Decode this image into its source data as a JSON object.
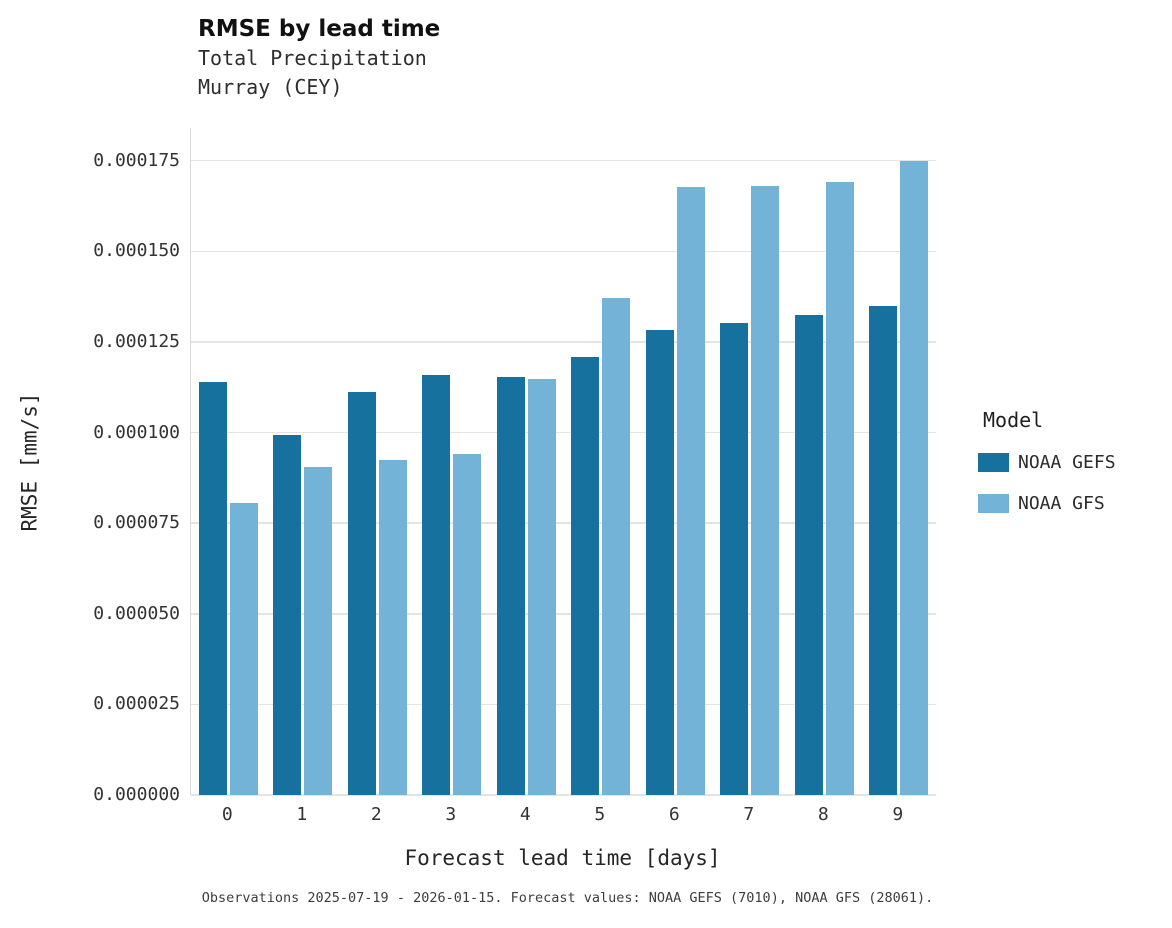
{
  "header": {
    "title": "RMSE by lead time",
    "subtitle_line1": "Total Precipitation",
    "subtitle_line2": "Murray (CEY)"
  },
  "chart_data": {
    "type": "bar",
    "title": "RMSE by lead time",
    "subtitle": "Total Precipitation / Murray (CEY)",
    "categories": [
      "0",
      "1",
      "2",
      "3",
      "4",
      "5",
      "6",
      "7",
      "8",
      "9"
    ],
    "series": [
      {
        "name": "NOAA GEFS",
        "color": "#17719f",
        "values": [
          0.000114,
          9.93e-05,
          0.0001113,
          0.000116,
          0.0001152,
          0.0001207,
          0.0001282,
          0.0001303,
          0.0001325,
          0.000135
        ]
      },
      {
        "name": "NOAA GFS",
        "color": "#73b3d8",
        "values": [
          8.05e-05,
          9.05e-05,
          9.23e-05,
          9.4e-05,
          0.0001148,
          0.0001372,
          0.0001678,
          0.000168,
          0.000169,
          0.0001748
        ]
      }
    ],
    "xlabel": "Forecast lead time [days]",
    "ylabel": "RMSE [mm/s]",
    "ylim": [
      0,
      0.000184
    ],
    "yticks": [
      0,
      2.5e-05,
      5e-05,
      7.5e-05,
      0.0001,
      0.000125,
      0.00015,
      0.000175
    ],
    "ytick_labels": [
      "0.000000",
      "0.000025",
      "0.000050",
      "0.000075",
      "0.000100",
      "0.000125",
      "0.000150",
      "0.000175"
    ],
    "grid": "horizontal-major-only",
    "legend_title": "Model",
    "legend_position": "right"
  },
  "caption": "Observations 2025-07-19 - 2026-01-15. Forecast values: NOAA GEFS (7010), NOAA GFS (28061)."
}
